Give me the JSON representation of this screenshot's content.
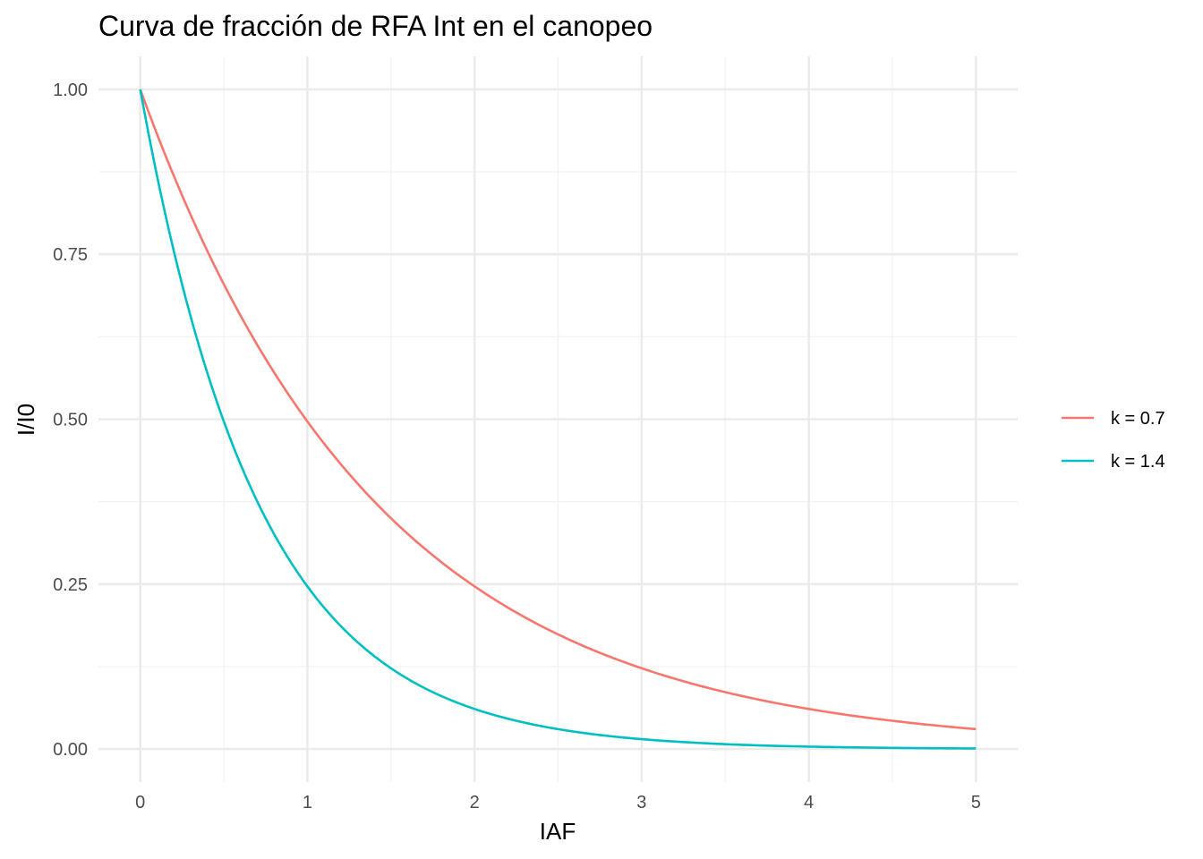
{
  "chart_data": {
    "type": "line",
    "title": "Curva de fracción de RFA Int en el canopeo",
    "xlabel": "IAF",
    "ylabel": "I/I0",
    "xlim": [
      -0.25,
      5.25
    ],
    "ylim": [
      -0.05,
      1.05
    ],
    "x_ticks": [
      0,
      1,
      2,
      3,
      4,
      5
    ],
    "x_tick_labels": [
      "0",
      "1",
      "2",
      "3",
      "4",
      "5"
    ],
    "y_ticks": [
      0,
      0.25,
      0.5,
      0.75,
      1.0
    ],
    "y_tick_labels": [
      "0.00",
      "0.25",
      "0.50",
      "0.75",
      "1.00"
    ],
    "grid": true,
    "legend_position": "right",
    "x": [
      0,
      0.25,
      0.5,
      0.75,
      1,
      1.25,
      1.5,
      1.75,
      2,
      2.25,
      2.5,
      2.75,
      3,
      3.25,
      3.5,
      3.75,
      4,
      4.25,
      4.5,
      4.75,
      5
    ],
    "series": [
      {
        "name": "k = 0.7",
        "color": "#F8766D",
        "values": [
          1.0,
          0.8395,
          0.7047,
          0.5916,
          0.4966,
          0.4169,
          0.3499,
          0.2938,
          0.2466,
          0.207,
          0.1738,
          0.1459,
          0.1225,
          0.1028,
          0.0863,
          0.0724,
          0.0608,
          0.051,
          0.0429,
          0.036,
          0.0302
        ]
      },
      {
        "name": "k = 1.4",
        "color": "#00BFC4",
        "values": [
          1.0,
          0.7047,
          0.4966,
          0.3499,
          0.2466,
          0.1738,
          0.1225,
          0.0863,
          0.0608,
          0.0429,
          0.0302,
          0.0213,
          0.015,
          0.0106,
          0.0074,
          0.0052,
          0.0037,
          0.0026,
          0.0018,
          0.0013,
          0.0009
        ]
      }
    ]
  }
}
